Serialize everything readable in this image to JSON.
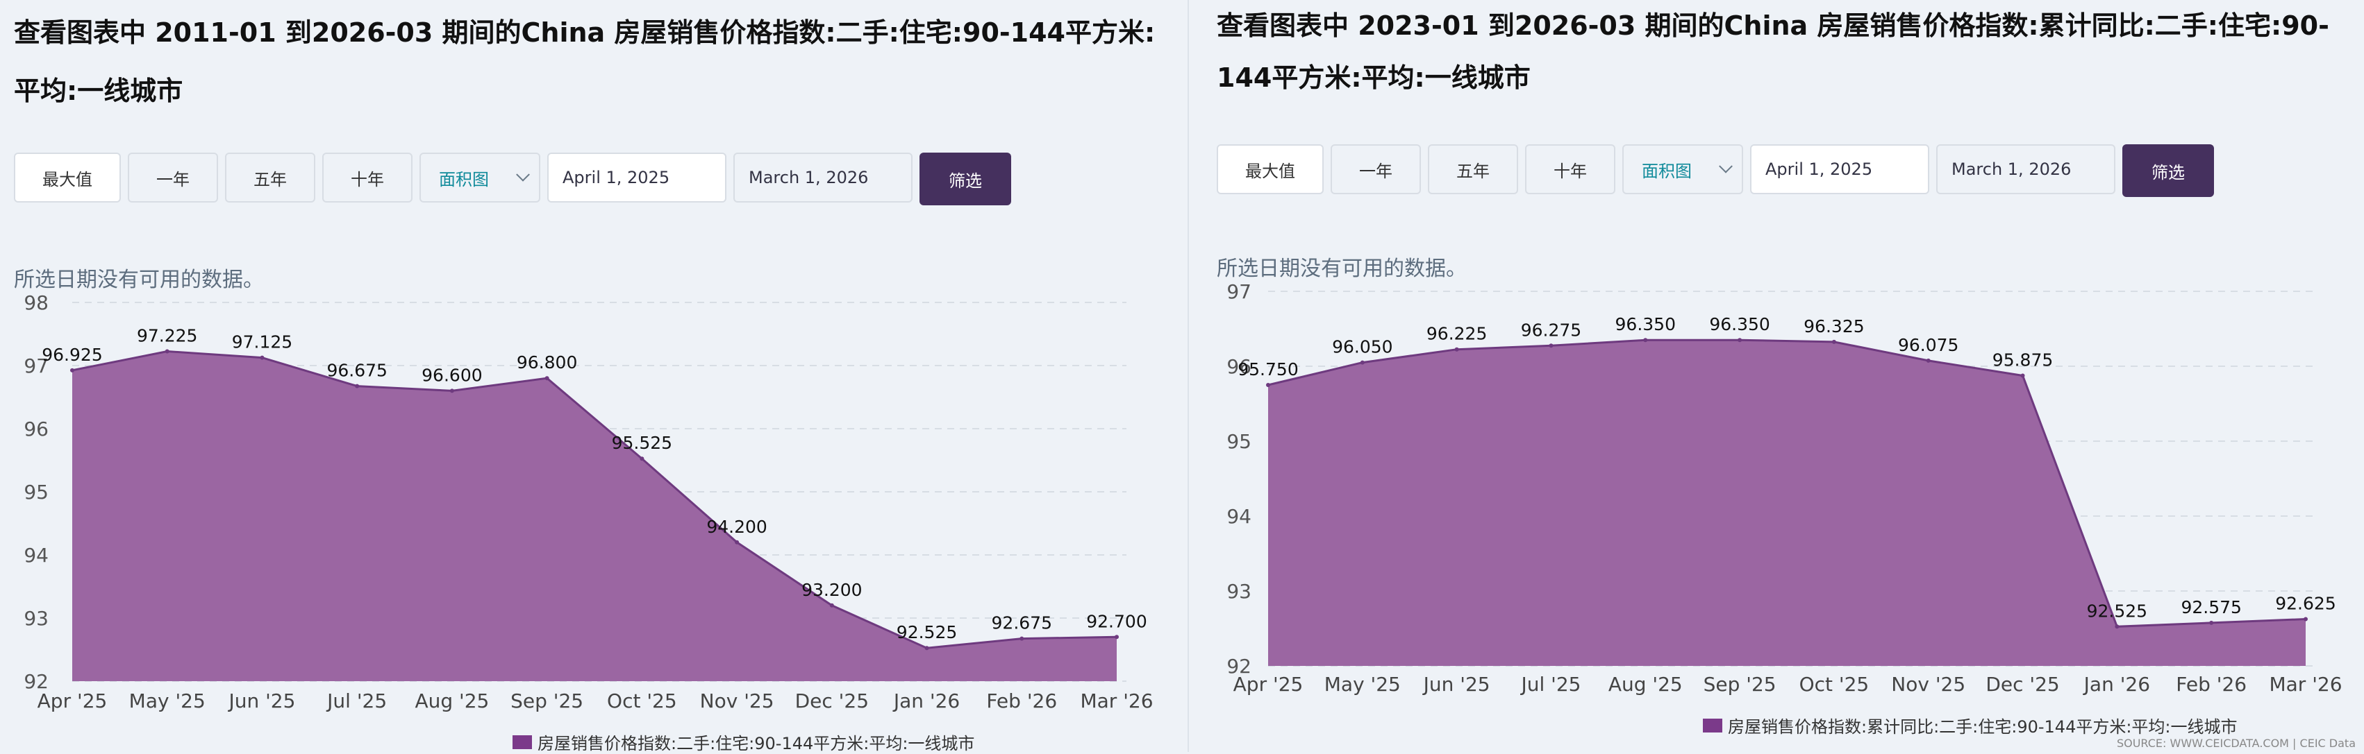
{
  "left": {
    "title": "查看图表中 2011-01 到2026-03 期间的China 房屋销售价格指数:二手:住宅:90-144平方米:平均:一线城市",
    "buttons": [
      "最大值",
      "一年",
      "五年",
      "十年"
    ],
    "chart_type_select": "面积图",
    "start_date": "April 1, 2025",
    "end_date": "March 1, 2026",
    "filter_label": "筛选",
    "no_data": "所选日期没有可用的数据。",
    "legend": "房屋销售价格指数:二手:住宅:90-144平方米:平均:一线城市"
  },
  "right": {
    "title_line1": "查看图表中 2023-01 到2026-03 期间的China 房屋销售价格指数:累计同比:二手:住宅:90-",
    "title_line2": "144平方米:平均:一线城市",
    "buttons": [
      "最大值",
      "一年",
      "五年",
      "十年"
    ],
    "chart_type_select": "面积图",
    "start_date": "April 1, 2025",
    "end_date": "March 1, 2026",
    "filter_label": "筛选",
    "no_data": "所选日期没有可用的数据。",
    "legend": "房屋销售价格指数:累计同比:二手:住宅:90-144平方米:平均:一线城市",
    "source": "SOURCE: WWW.CEICDATA.COM | CEIC Data"
  },
  "colors": {
    "area_fill": "#9b66a2",
    "area_stroke": "#6e3a7f",
    "accent_button": "#45305e",
    "select_text": "#0f8a9a"
  },
  "chart_data": [
    {
      "type": "area",
      "categories": [
        "Apr '25",
        "May '25",
        "Jun '25",
        "Jul '25",
        "Aug '25",
        "Sep '25",
        "Oct '25",
        "Nov '25",
        "Dec '25",
        "Jan '26",
        "Feb '26",
        "Mar '26"
      ],
      "values": [
        96.925,
        97.225,
        97.125,
        96.675,
        96.6,
        96.8,
        95.525,
        94.2,
        93.2,
        92.525,
        92.675,
        92.7
      ],
      "labels": [
        "96.925",
        "97.225",
        "97.125",
        "96.675",
        "96.600",
        "96.800",
        "95.525",
        "94.200",
        "93.200",
        "92.525",
        "92.675",
        "92.700"
      ],
      "y_ticks": [
        "92",
        "93",
        "94",
        "95",
        "96",
        "97",
        "98"
      ],
      "ylim": [
        92,
        98
      ],
      "grid": true,
      "legend_position": "bottom"
    },
    {
      "type": "area",
      "categories": [
        "Apr '25",
        "May '25",
        "Jun '25",
        "Jul '25",
        "Aug '25",
        "Sep '25",
        "Oct '25",
        "Nov '25",
        "Dec '25",
        "Jan '26",
        "Feb '26",
        "Mar '26"
      ],
      "values": [
        95.75,
        96.05,
        96.225,
        96.275,
        96.35,
        96.35,
        96.325,
        96.075,
        95.875,
        92.525,
        92.575,
        92.625
      ],
      "labels": [
        "95.750",
        "96.050",
        "96.225",
        "96.275",
        "96.350",
        "96.350",
        "96.325",
        "96.075",
        "95.875",
        "92.525",
        "92.575",
        "92.625"
      ],
      "y_ticks": [
        "92",
        "93",
        "94",
        "95",
        "96",
        "97"
      ],
      "ylim": [
        92,
        97
      ],
      "grid": true,
      "legend_position": "bottom"
    }
  ]
}
